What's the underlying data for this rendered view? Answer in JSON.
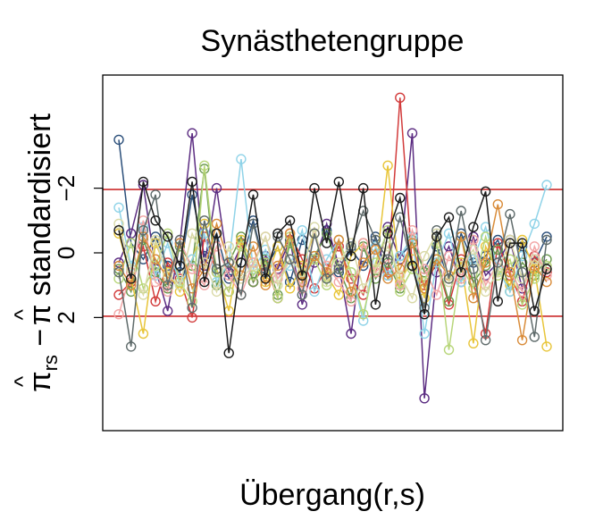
{
  "chart_data": {
    "type": "line",
    "title": "Synästhetengruppe",
    "xlabel": "Übergang(r,s)",
    "ylabel": {
      "pi_hat_rs": "π",
      "hat": "^",
      "subscript": "rs",
      "minus": " − ",
      "pi_hat": "π",
      "suffix": " standardisiert"
    },
    "y_reversed": true,
    "ylim": [
      -5.5,
      5.5
    ],
    "y_ticks": [
      -2,
      0,
      2
    ],
    "y_tick_labels": [
      "−2",
      "0",
      "2"
    ],
    "x_ticks": [],
    "reference_lines": [
      {
        "y": -1.96,
        "color": "#cc2b2b"
      },
      {
        "y": 1.96,
        "color": "#cc2b2b"
      }
    ],
    "n_transitions": 36,
    "series": [
      {
        "color": "#2b4f7a",
        "values": [
          -3.5,
          -0.3,
          0.2,
          -0.5,
          0.4,
          0.6,
          -1.8,
          0.1,
          -0.6,
          0.8,
          0.3,
          -1.0,
          0.5,
          -0.2,
          0.9,
          -0.4,
          0.2,
          -0.7,
          0.6,
          -0.1,
          0.4,
          -0.5,
          0.7,
          0.1,
          -0.3,
          0.5,
          -0.2,
          0.8,
          -0.6,
          0.3,
          0.1,
          -0.4,
          0.6,
          -0.2,
          0.3,
          -0.5
        ]
      },
      {
        "color": "#5c2d82",
        "values": [
          0.3,
          -0.6,
          -2.1,
          0.5,
          1.8,
          -0.3,
          -3.7,
          0.4,
          -2.0,
          0.6,
          -0.2,
          0.9,
          0.1,
          0.5,
          -0.4,
          1.6,
          0.3,
          -0.9,
          0.4,
          2.5,
          -0.3,
          0.6,
          -0.8,
          0.2,
          -3.7,
          4.5,
          0.6,
          -0.2,
          0.9,
          -0.5,
          0.7,
          0.3,
          -0.4,
          1.1,
          0.2,
          0.5
        ]
      },
      {
        "color": "#d23b3b",
        "values": [
          1.3,
          0.9,
          -0.2,
          1.5,
          0.3,
          0.8,
          2.0,
          -0.5,
          0.6,
          1.2,
          -0.3,
          0.9,
          0.4,
          1.4,
          -0.6,
          0.2,
          1.1,
          0.5,
          -0.2,
          0.8,
          1.3,
          -0.1,
          0.6,
          -4.8,
          0.4,
          1.0,
          0.3,
          1.6,
          0.2,
          0.9,
          2.5,
          -0.3,
          0.7,
          1.5,
          0.1,
          0.6
        ]
      },
      {
        "color": "#6a994e",
        "values": [
          0.5,
          1.2,
          -0.4,
          0.6,
          1.1,
          -0.2,
          0.4,
          -2.6,
          1.0,
          0.3,
          -0.5,
          0.9,
          0.2,
          1.3,
          -0.3,
          0.7,
          0.1,
          -0.6,
          0.5,
          1.4,
          -0.2,
          0.8,
          0.3,
          1.1,
          -0.4,
          0.6,
          0.2,
          1.5,
          -0.5,
          0.9,
          0.4,
          -0.1,
          1.2,
          0.3,
          0.7,
          0.2
        ]
      },
      {
        "color": "#e8c53a",
        "values": [
          -0.6,
          0.8,
          2.5,
          -0.3,
          0.6,
          1.2,
          0.2,
          -0.9,
          0.5,
          1.8,
          -0.4,
          0.3,
          0.9,
          -0.2,
          1.1,
          0.4,
          -0.6,
          0.7,
          1.3,
          0.1,
          -0.3,
          0.6,
          -2.7,
          0.9,
          0.2,
          1.4,
          -0.5,
          0.8,
          0.3,
          2.8,
          -0.2,
          0.6,
          1.0,
          -0.4,
          0.5,
          2.9
        ]
      },
      {
        "color": "#8fd3e8",
        "values": [
          -1.4,
          0.4,
          -0.8,
          0.7,
          -0.3,
          1.0,
          0.2,
          -0.6,
          0.9,
          0.3,
          -2.9,
          0.5,
          -0.1,
          0.8,
          0.4,
          -0.7,
          1.2,
          0.2,
          -0.4,
          0.6,
          2.1,
          -0.2,
          0.7,
          0.1,
          -0.5,
          2.5,
          0.3,
          -0.6,
          0.9,
          0.2,
          -0.8,
          0.5,
          1.2,
          0.1,
          -0.9,
          -2.1
        ]
      },
      {
        "color": "#b8d67a",
        "values": [
          0.8,
          -0.3,
          1.1,
          0.4,
          -0.6,
          0.9,
          1.5,
          -2.7,
          0.6,
          1.2,
          -0.2,
          0.7,
          0.3,
          1.4,
          -0.5,
          0.8,
          0.2,
          1.0,
          -0.4,
          0.6,
          1.9,
          0.3,
          -0.7,
          1.2,
          0.5,
          0.9,
          -0.3,
          3.0,
          0.4,
          1.1,
          -0.5,
          0.7,
          0.2,
          1.6,
          0.8,
          0.4
        ]
      },
      {
        "color": "#f2a6a6",
        "values": [
          1.9,
          0.6,
          -1.0,
          0.9,
          1.2,
          -0.4,
          0.5,
          1.0,
          -0.2,
          0.7,
          1.3,
          0.3,
          -0.5,
          0.8,
          0.2,
          1.1,
          -0.6,
          0.4,
          0.9,
          1.5,
          -0.3,
          0.6,
          0.2,
          1.0,
          -0.7,
          0.5,
          1.3,
          0.1,
          0.8,
          -0.4,
          1.0,
          0.3,
          0.6,
          1.2,
          -0.2,
          0.7
        ]
      },
      {
        "color": "#d98c3a",
        "values": [
          0.4,
          1.0,
          -0.5,
          0.2,
          0.8,
          -0.3,
          1.1,
          0.5,
          -0.9,
          0.3,
          0.7,
          -0.2,
          1.0,
          0.4,
          -0.6,
          0.9,
          0.1,
          0.6,
          -0.4,
          1.2,
          0.3,
          -0.1,
          0.8,
          0.5,
          -0.3,
          1.1,
          0.2,
          0.7,
          -0.5,
          1.4,
          0.3,
          -1.5,
          0.6,
          2.7,
          0.4,
          0.9
        ]
      },
      {
        "color": "#d9d9a6",
        "values": [
          -0.9,
          0.5,
          1.3,
          -0.4,
          0.7,
          1.0,
          -0.6,
          0.3,
          1.2,
          -0.2,
          0.8,
          0.4,
          -0.5,
          1.0,
          0.2,
          0.6,
          -0.8,
          0.9,
          0.3,
          -0.3,
          1.1,
          0.5,
          -0.2,
          0.7,
          1.4,
          0.1,
          -0.6,
          0.9,
          0.4,
          -0.1,
          1.2,
          0.6,
          -0.4,
          0.8,
          0.2,
          0.5
        ]
      },
      {
        "color": "#5f6b6b",
        "values": [
          0.6,
          2.9,
          -0.7,
          -1.8,
          1.0,
          -0.4,
          1.7,
          -1.0,
          0.5,
          0.3,
          1.3,
          -0.9,
          0.6,
          -0.5,
          0.2,
          1.3,
          -0.6,
          0.8,
          0.5,
          -0.2,
          -1.3,
          -0.4,
          0.2,
          -1.1,
          0.4,
          1.7,
          -0.7,
          0.8,
          -1.3,
          0.5,
          2.7,
          0.3,
          -1.2,
          0.6,
          2.6,
          -0.4
        ]
      },
      {
        "color": "#1a1a1a",
        "values": [
          -0.7,
          0.8,
          -2.2,
          -1.0,
          -0.5,
          0.4,
          -2.2,
          0.9,
          -0.6,
          3.1,
          0.3,
          -1.8,
          0.8,
          -0.6,
          -1.0,
          0.7,
          -2.0,
          -0.3,
          -2.2,
          0.1,
          -2.0,
          1.6,
          -0.6,
          -1.7,
          0.4,
          1.9,
          -0.5,
          -1.1,
          0.6,
          -0.8,
          -1.9,
          1.5,
          -0.3,
          -0.3,
          1.8,
          0.5
        ]
      }
    ]
  }
}
